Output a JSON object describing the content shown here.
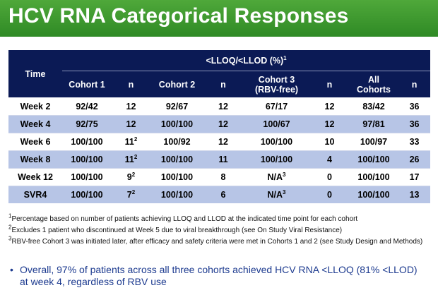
{
  "title": "HCV RNA Categorical Responses",
  "table": {
    "span_header_text": "<LLOQ/<LLOD (%)",
    "span_header_sup": "1",
    "columns": {
      "time": "Time",
      "c1": "Cohort 1",
      "n1": "n",
      "c2": "Cohort 2",
      "n2": "n",
      "c3_line1": "Cohort 3",
      "c3_line2": "(RBV-free)",
      "n3": "n",
      "all_line1": "All",
      "all_line2": "Cohorts",
      "nall": "n"
    },
    "rows": [
      {
        "time": "Week 2",
        "c1": "92/42",
        "n1": "12",
        "n1_sup": "",
        "c2": "92/67",
        "n2": "12",
        "c3": "67/17",
        "c3_sup": "",
        "n3": "12",
        "all": "83/42",
        "nall": "36"
      },
      {
        "time": "Week 4",
        "c1": "92/75",
        "n1": "12",
        "n1_sup": "",
        "c2": "100/100",
        "n2": "12",
        "c3": "100/67",
        "c3_sup": "",
        "n3": "12",
        "all": "97/81",
        "nall": "36"
      },
      {
        "time": "Week 6",
        "c1": "100/100",
        "n1": "11",
        "n1_sup": "2",
        "c2": "100/92",
        "n2": "12",
        "c3": "100/100",
        "c3_sup": "",
        "n3": "10",
        "all": "100/97",
        "nall": "33"
      },
      {
        "time": "Week 8",
        "c1": "100/100",
        "n1": "11",
        "n1_sup": "2",
        "c2": "100/100",
        "n2": "11",
        "c3": "100/100",
        "c3_sup": "",
        "n3": "4",
        "all": "100/100",
        "nall": "26"
      },
      {
        "time": "Week 12",
        "c1": "100/100",
        "n1": "9",
        "n1_sup": "2",
        "c2": "100/100",
        "n2": "8",
        "c3": "N/A",
        "c3_sup": "3",
        "n3": "0",
        "all": "100/100",
        "nall": "17"
      },
      {
        "time": "SVR4",
        "c1": "100/100",
        "n1": "7",
        "n1_sup": "2",
        "c2": "100/100",
        "n2": "6",
        "c3": "N/A",
        "c3_sup": "3",
        "n3": "0",
        "all": "100/100",
        "nall": "13"
      }
    ]
  },
  "footnotes": [
    {
      "num": "1",
      "text": "Percentage based on number of patients achieving LLOQ and LLOD at the indicated time point for each cohort"
    },
    {
      "num": "2",
      "text": "Excludes 1 patient who discontinued at Week 5 due to viral breakthrough (see On Study Viral Resistance)"
    },
    {
      "num": "3",
      "text": "RBV-free Cohort 3 was initiated later, after efficacy and safety criteria were met in Cohorts 1 and 2 (see Study Design and Methods)"
    }
  ],
  "bullet": {
    "symbol": "•",
    "text": "Overall, 97% of patients across all three cohorts achieved HCV RNA <LLOQ (81% <LLOD) at week 4, regardless of RBV use"
  },
  "colors": {
    "title_green": "#3a9a2e",
    "header_navy": "#0b1a55",
    "row_blue": "#b7c5e6",
    "bullet_blue": "#1c3a8f"
  }
}
